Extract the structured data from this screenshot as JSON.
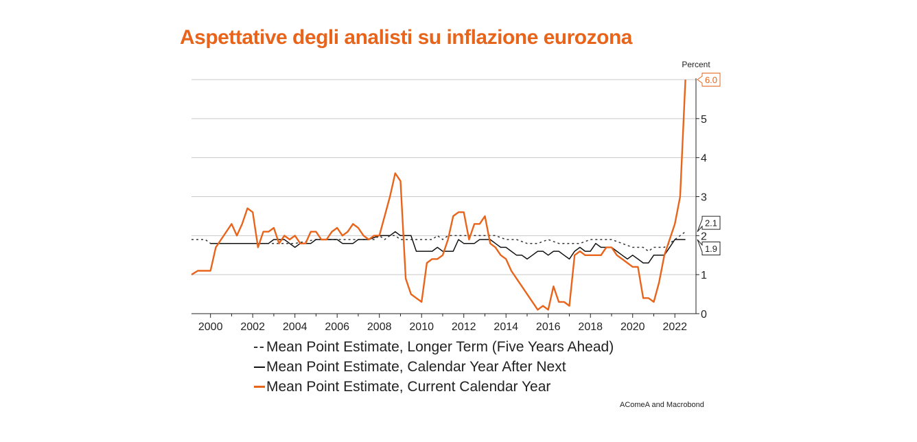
{
  "chart_data": {
    "type": "line",
    "title": "Aspettative degli analisti su inflazione eurozona",
    "ylabel": "Percent",
    "xlim": [
      1999.1,
      2023.0
    ],
    "ylim": [
      0,
      6
    ],
    "grid": true,
    "y_axis_side": "right",
    "x_ticks": [
      "2000",
      "2002",
      "2004",
      "2006",
      "2008",
      "2010",
      "2012",
      "2014",
      "2016",
      "2018",
      "2020",
      "2022"
    ],
    "y_ticks": [
      "0",
      "1",
      "2",
      "3",
      "4",
      "5"
    ],
    "legend_position": "bottom",
    "series": [
      {
        "name": "Mean Point Estimate, Longer Term (Five Years Ahead)",
        "style": "dashed",
        "color": "#333333",
        "x": [
          1999.1,
          1999.75,
          2000.0,
          2001.0,
          2002.0,
          2003.0,
          2004.0,
          2005.0,
          2006.0,
          2007.0,
          2007.75,
          2008.0,
          2008.25,
          2008.5,
          2008.75,
          2009.0,
          2009.5,
          2010.0,
          2010.5,
          2010.75,
          2011.0,
          2011.25,
          2012.0,
          2013.0,
          2013.5,
          2014.0,
          2014.5,
          2015.0,
          2015.5,
          2016.0,
          2016.5,
          2017.0,
          2017.5,
          2018.0,
          2018.5,
          2019.0,
          2019.5,
          2020.0,
          2020.5,
          2020.75,
          2021.0,
          2021.5,
          2021.75,
          2022.0,
          2022.25,
          2022.5
        ],
        "y": [
          1.9,
          1.9,
          1.8,
          1.8,
          1.8,
          1.8,
          1.8,
          1.9,
          1.9,
          1.9,
          1.9,
          2.0,
          1.9,
          2.0,
          2.0,
          1.9,
          1.9,
          1.9,
          1.9,
          2.0,
          1.9,
          2.0,
          2.0,
          2.0,
          2.0,
          1.9,
          1.9,
          1.8,
          1.8,
          1.9,
          1.8,
          1.8,
          1.8,
          1.9,
          1.9,
          1.9,
          1.8,
          1.7,
          1.7,
          1.6,
          1.7,
          1.7,
          1.8,
          1.9,
          2.0,
          2.1
        ],
        "end_label": "2.1"
      },
      {
        "name": "Mean Point Estimate, Calendar Year After Next",
        "style": "solid",
        "color": "#111111",
        "x": [
          2000.0,
          2000.5,
          2001.0,
          2001.5,
          2002.0,
          2002.5,
          2002.75,
          2003.0,
          2003.25,
          2003.5,
          2003.75,
          2004.0,
          2004.25,
          2004.5,
          2004.75,
          2005.0,
          2005.5,
          2006.0,
          2006.25,
          2006.5,
          2006.75,
          2007.0,
          2007.5,
          2008.0,
          2008.5,
          2008.75,
          2009.0,
          2009.5,
          2009.75,
          2010.0,
          2010.5,
          2010.75,
          2011.0,
          2011.5,
          2011.75,
          2012.0,
          2012.25,
          2012.5,
          2012.75,
          2013.0,
          2013.25,
          2013.5,
          2013.75,
          2014.0,
          2014.25,
          2014.5,
          2014.75,
          2015.0,
          2015.25,
          2015.5,
          2015.75,
          2016.0,
          2016.25,
          2016.5,
          2016.75,
          2017.0,
          2017.25,
          2017.5,
          2017.75,
          2018.0,
          2018.25,
          2018.5,
          2018.75,
          2019.0,
          2019.25,
          2019.5,
          2019.75,
          2020.0,
          2020.25,
          2020.5,
          2020.75,
          2021.0,
          2021.25,
          2021.5,
          2021.75,
          2022.0,
          2022.25,
          2022.5
        ],
        "y": [
          1.8,
          1.8,
          1.8,
          1.8,
          1.8,
          1.8,
          1.8,
          1.9,
          1.9,
          1.9,
          1.8,
          1.7,
          1.8,
          1.8,
          1.8,
          1.9,
          1.9,
          1.9,
          1.8,
          1.8,
          1.8,
          1.9,
          1.9,
          2.0,
          2.0,
          2.1,
          2.0,
          2.0,
          1.6,
          1.6,
          1.6,
          1.7,
          1.6,
          1.6,
          1.9,
          1.8,
          1.8,
          1.8,
          1.9,
          1.9,
          1.9,
          1.8,
          1.7,
          1.7,
          1.6,
          1.5,
          1.5,
          1.4,
          1.5,
          1.6,
          1.6,
          1.5,
          1.6,
          1.6,
          1.5,
          1.4,
          1.6,
          1.7,
          1.6,
          1.6,
          1.8,
          1.7,
          1.7,
          1.7,
          1.6,
          1.5,
          1.4,
          1.5,
          1.4,
          1.3,
          1.3,
          1.5,
          1.5,
          1.5,
          1.7,
          1.9,
          1.9,
          1.9
        ],
        "end_label": "1.9"
      },
      {
        "name": "Mean Point Estimate, Current Calendar Year",
        "style": "solid",
        "color": "#e8641b",
        "x": [
          1999.1,
          1999.4,
          2000.0,
          2000.25,
          2000.5,
          2001.0,
          2001.25,
          2001.5,
          2001.75,
          2002.0,
          2002.25,
          2002.5,
          2002.75,
          2003.0,
          2003.25,
          2003.5,
          2003.75,
          2004.0,
          2004.25,
          2004.5,
          2004.75,
          2005.0,
          2005.25,
          2005.5,
          2005.75,
          2006.0,
          2006.25,
          2006.5,
          2006.75,
          2007.0,
          2007.25,
          2007.5,
          2007.75,
          2008.0,
          2008.25,
          2008.5,
          2008.75,
          2009.0,
          2009.25,
          2009.5,
          2009.75,
          2010.0,
          2010.25,
          2010.5,
          2010.75,
          2011.0,
          2011.25,
          2011.5,
          2011.75,
          2012.0,
          2012.25,
          2012.5,
          2012.75,
          2013.0,
          2013.25,
          2013.5,
          2013.75,
          2014.0,
          2014.25,
          2014.5,
          2014.75,
          2015.0,
          2015.25,
          2015.5,
          2015.75,
          2016.0,
          2016.25,
          2016.5,
          2016.75,
          2017.0,
          2017.25,
          2017.5,
          2017.75,
          2018.0,
          2018.25,
          2018.5,
          2018.75,
          2019.0,
          2019.25,
          2019.5,
          2019.75,
          2020.0,
          2020.25,
          2020.5,
          2020.75,
          2021.0,
          2021.25,
          2021.5,
          2021.75,
          2022.0,
          2022.25,
          2022.5
        ],
        "y": [
          1.0,
          1.1,
          1.1,
          1.7,
          1.9,
          2.3,
          2.0,
          2.3,
          2.7,
          2.6,
          1.7,
          2.1,
          2.1,
          2.2,
          1.8,
          2.0,
          1.9,
          2.0,
          1.8,
          1.8,
          2.1,
          2.1,
          1.9,
          1.9,
          2.1,
          2.2,
          2.0,
          2.1,
          2.3,
          2.2,
          2.0,
          1.9,
          2.0,
          2.0,
          2.5,
          3.0,
          3.6,
          3.4,
          0.9,
          0.5,
          0.4,
          0.3,
          1.3,
          1.4,
          1.4,
          1.5,
          1.9,
          2.5,
          2.6,
          2.6,
          1.9,
          2.3,
          2.3,
          2.5,
          1.8,
          1.7,
          1.5,
          1.4,
          1.1,
          0.9,
          0.7,
          0.5,
          0.3,
          0.1,
          0.2,
          0.1,
          0.7,
          0.3,
          0.3,
          0.2,
          1.5,
          1.6,
          1.5,
          1.5,
          1.5,
          1.5,
          1.7,
          1.7,
          1.5,
          1.4,
          1.3,
          1.2,
          1.2,
          0.4,
          0.4,
          0.3,
          0.8,
          1.5,
          1.9,
          2.3,
          3.0,
          6.0
        ],
        "end_label": "6.0"
      }
    ]
  },
  "source": "AComeA and Macrobond"
}
